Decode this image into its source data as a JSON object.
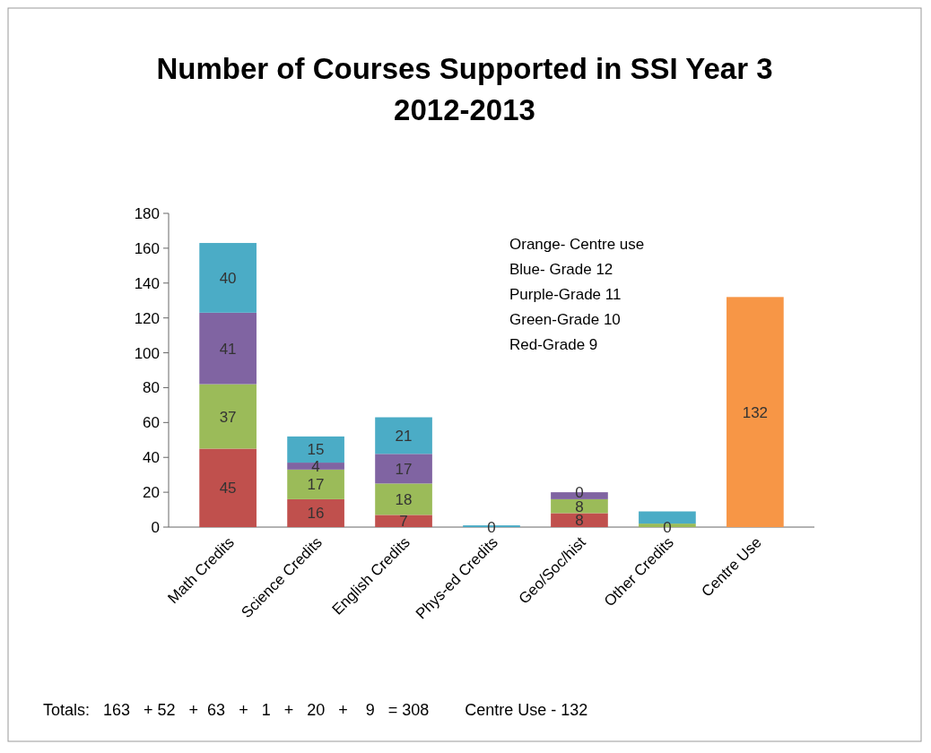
{
  "chart_data": {
    "type": "bar",
    "stacked": true,
    "title": "Number of Courses  Supported in SSI Year 3\n2012-2013",
    "categories": [
      "Math Credits",
      "Science Credits",
      "English Credits",
      "Phys-ed Credits",
      "Geo/Soc/hist",
      "Other Credits",
      "Centre Use"
    ],
    "series": [
      {
        "color": "#c0504d",
        "values": [
          45,
          16,
          7,
          0,
          8,
          0,
          0
        ],
        "value_labels": [
          "45",
          "16",
          "7",
          "0",
          "8",
          "0",
          null
        ]
      },
      {
        "color": "#9bbb59",
        "values": [
          37,
          17,
          18,
          0,
          8,
          2,
          0
        ],
        "value_labels": [
          "37",
          "17",
          "18",
          null,
          "8",
          null,
          null
        ]
      },
      {
        "color": "#8064a2",
        "values": [
          41,
          4,
          17,
          0,
          4,
          0,
          0
        ],
        "value_labels": [
          "41",
          "4",
          "17",
          null,
          null,
          null,
          null
        ]
      },
      {
        "color": "#4bacc6",
        "values": [
          40,
          15,
          21,
          1,
          0,
          7,
          0
        ],
        "value_labels": [
          "40",
          "15",
          "21",
          null,
          "0",
          null,
          null
        ]
      },
      {
        "color": "#f79646",
        "values": [
          0,
          0,
          0,
          0,
          0,
          0,
          132
        ],
        "value_labels": [
          null,
          null,
          null,
          null,
          null,
          null,
          "132"
        ]
      }
    ],
    "ylim": [
      0,
      180
    ],
    "yticks": [
      0,
      20,
      40,
      60,
      80,
      100,
      120,
      140,
      160,
      180
    ],
    "annotations": [
      "Orange- Centre use\nBlue- Grade 12\nPurple-Grade 11\nGreen-Grade 10\nRed-Grade 9",
      "Totals:   163   + 52   +  63   +   1   +   20   +    9   = 308        Centre Use - 132"
    ]
  }
}
